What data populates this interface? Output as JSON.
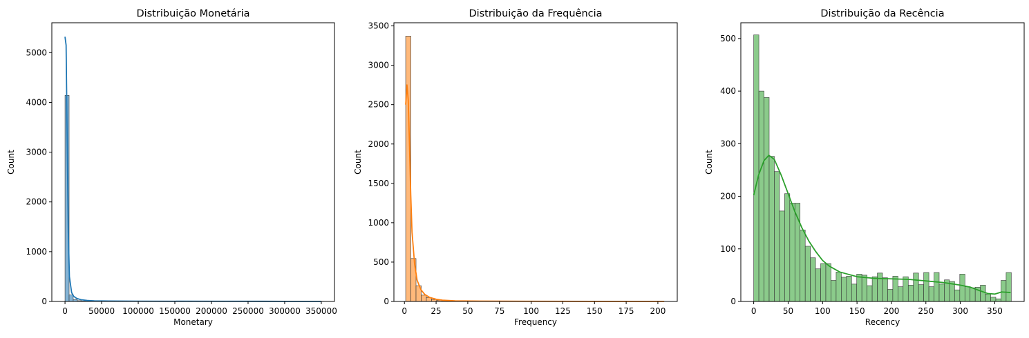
{
  "chart_data": [
    {
      "type": "histogram",
      "title": "Distribuição Monetária",
      "xlabel": "Monetary",
      "ylabel": "Count",
      "xlim": [
        -18000,
        368000
      ],
      "ylim": [
        0,
        5600
      ],
      "xticks": [
        0,
        50000,
        100000,
        150000,
        200000,
        250000,
        300000,
        350000
      ],
      "xtick_labels": [
        "0",
        "50000",
        "100000",
        "150000",
        "200000",
        "250000",
        "300000",
        "350000"
      ],
      "yticks": [
        0,
        1000,
        2000,
        3000,
        4000,
        5000
      ],
      "ytick_labels": [
        "0",
        "1000",
        "2000",
        "3000",
        "4000",
        "5000"
      ],
      "color": "#1f77b4",
      "bin_start": 0,
      "bin_width": 5600,
      "counts": [
        4140,
        130,
        40,
        15,
        8,
        5,
        4,
        3,
        2,
        2,
        2,
        1,
        1,
        1,
        1,
        1,
        1,
        1,
        1,
        1,
        1,
        1,
        1,
        1,
        1,
        1,
        1,
        0,
        1,
        0,
        1,
        0,
        1,
        0,
        1,
        0,
        0,
        0,
        1,
        0,
        0,
        0,
        0,
        0,
        0,
        0,
        0,
        0,
        0,
        0,
        0,
        0,
        0,
        0,
        0,
        0,
        0,
        0,
        0,
        0,
        0,
        0,
        1
      ],
      "kde": {
        "x": [
          0,
          1500,
          3000,
          4500,
          6000,
          9000,
          12000,
          16000,
          22000,
          30000,
          40000,
          60000,
          100000,
          200000,
          300000,
          350000
        ],
        "y": [
          5320,
          5150,
          3200,
          1400,
          500,
          180,
          100,
          60,
          35,
          20,
          12,
          8,
          5,
          3,
          2,
          2
        ]
      }
    },
    {
      "type": "histogram",
      "title": "Distribuição da Frequência",
      "xlabel": "Frequency",
      "ylabel": "Count",
      "xlim": [
        -8.3,
        215.3
      ],
      "ylim": [
        0,
        3540
      ],
      "xticks": [
        0,
        25,
        50,
        75,
        100,
        125,
        150,
        175,
        200
      ],
      "xtick_labels": [
        "0",
        "25",
        "50",
        "75",
        "100",
        "125",
        "150",
        "175",
        "200"
      ],
      "yticks": [
        0,
        500,
        1000,
        1500,
        2000,
        2500,
        3000,
        3500
      ],
      "ytick_labels": [
        "0",
        "500",
        "1000",
        "1500",
        "2000",
        "2500",
        "3000",
        "3500"
      ],
      "color": "#ff7f0e",
      "bin_start": 1,
      "bin_width": 4.08,
      "counts": [
        3370,
        545,
        200,
        80,
        50,
        25,
        15,
        10,
        7,
        5,
        3,
        2,
        2,
        1,
        1,
        1,
        1,
        1,
        1,
        1,
        1,
        1,
        1,
        1,
        1,
        1,
        1,
        1,
        1,
        1,
        1,
        1,
        1,
        1,
        1,
        1,
        1,
        1,
        1,
        1,
        1,
        1,
        1,
        1,
        1,
        1,
        1,
        1,
        1,
        1
      ],
      "kde": {
        "x": [
          1,
          2,
          3,
          4,
          5,
          6,
          8,
          10,
          13,
          16,
          20,
          25,
          30,
          40,
          60,
          100,
          150,
          205
        ],
        "y": [
          2500,
          2750,
          2560,
          1980,
          1350,
          880,
          480,
          270,
          150,
          90,
          50,
          28,
          16,
          8,
          4,
          2,
          1,
          1
        ]
      }
    },
    {
      "type": "histogram",
      "title": "Distribuição da Recência",
      "xlabel": "Recency",
      "ylabel": "Count",
      "xlim": [
        -18.7,
        392.7
      ],
      "ylim": [
        0,
        530
      ],
      "xticks": [
        0,
        50,
        100,
        150,
        200,
        250,
        300,
        350
      ],
      "xtick_labels": [
        "0",
        "50",
        "100",
        "150",
        "200",
        "250",
        "300",
        "350"
      ],
      "yticks": [
        0,
        100,
        200,
        300,
        400,
        500
      ],
      "ytick_labels": [
        "0",
        "100",
        "200",
        "300",
        "400",
        "500"
      ],
      "color": "#2ca02c",
      "bin_start": 0,
      "bin_width": 7.48,
      "counts": [
        507,
        400,
        388,
        276,
        247,
        172,
        205,
        187,
        187,
        136,
        105,
        83,
        62,
        72,
        72,
        40,
        56,
        46,
        48,
        33,
        52,
        50,
        30,
        47,
        54,
        45,
        23,
        48,
        28,
        47,
        31,
        54,
        32,
        55,
        28,
        55,
        33,
        41,
        38,
        22,
        52,
        28,
        26,
        27,
        31,
        14,
        8,
        5,
        40,
        55
      ],
      "kde": {
        "x": [
          0,
          7,
          15,
          22,
          30,
          40,
          50,
          60,
          70,
          80,
          90,
          100,
          110,
          125,
          150,
          175,
          200,
          225,
          250,
          275,
          300,
          315,
          325,
          340,
          350,
          360,
          373
        ],
        "y": [
          202,
          240,
          268,
          278,
          270,
          240,
          205,
          170,
          140,
          115,
          95,
          78,
          67,
          56,
          47,
          44,
          43,
          42,
          39,
          36,
          31,
          27,
          22,
          15,
          14,
          18,
          17
        ]
      }
    }
  ]
}
